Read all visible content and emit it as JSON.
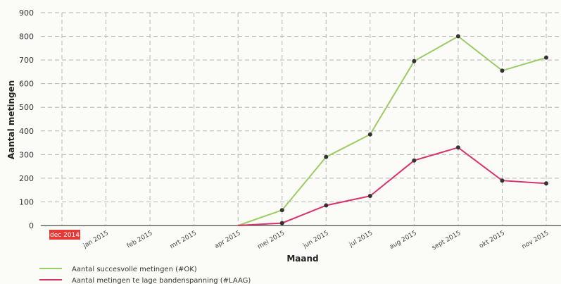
{
  "chart_data": {
    "type": "line",
    "title": "",
    "xlabel": "Maand",
    "ylabel": "Aantal metingen",
    "categories": [
      "dec 2014",
      "jan 2015",
      "feb 2015",
      "mrt 2015",
      "apr 2015",
      "mei 2015",
      "jun 2015",
      "jul 2015",
      "aug 2015",
      "sept 2015",
      "okt 2015",
      "nov 2015"
    ],
    "highlighted_category": "dec 2014",
    "ylim": [
      0,
      900
    ],
    "yticks": [
      0,
      100,
      200,
      300,
      400,
      500,
      600,
      700,
      800,
      900
    ],
    "grid": true,
    "legend_position": "bottom-left",
    "series": [
      {
        "name": "Aantal succesvolle metingen (#OK)",
        "color": "#9ccc65",
        "values": [
          0,
          0,
          0,
          0,
          0,
          65,
          290,
          385,
          695,
          800,
          655,
          710
        ]
      },
      {
        "name": "Aantal metingen te lage bandenspanning (#LAAG)",
        "color": "#d6336c",
        "values": [
          0,
          0,
          0,
          0,
          0,
          10,
          85,
          125,
          275,
          330,
          190,
          178
        ]
      }
    ]
  }
}
